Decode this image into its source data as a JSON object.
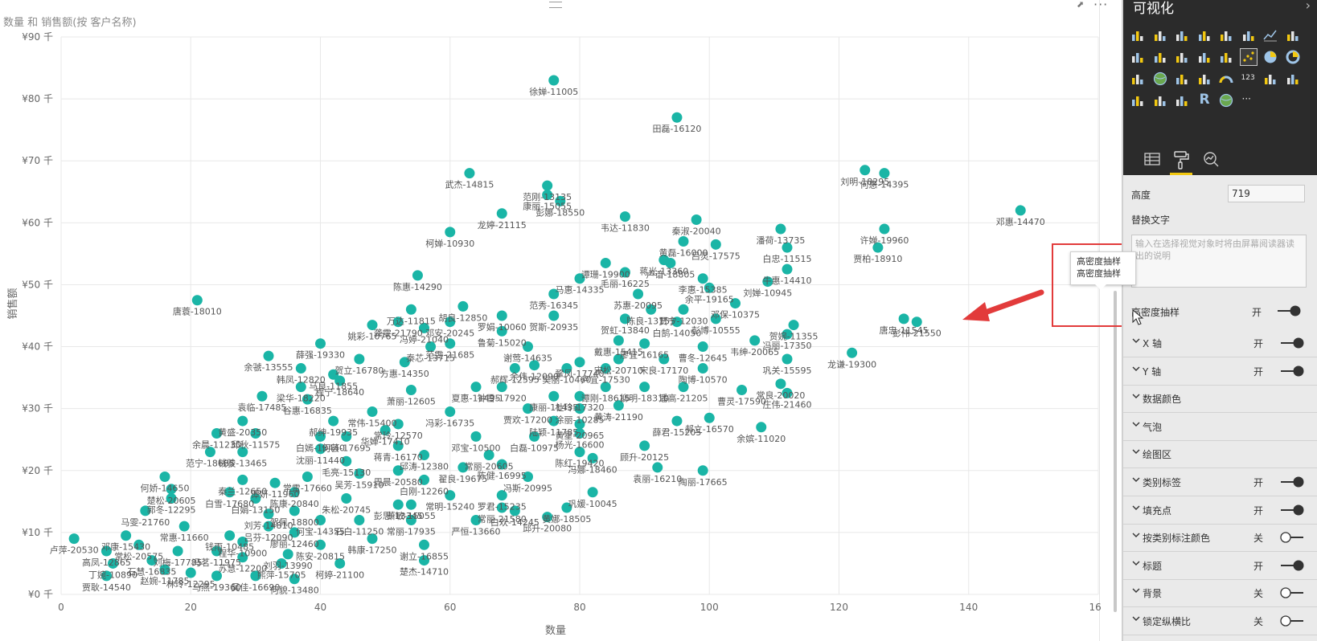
{
  "visual": {
    "title": "数量 和 销售额(按 客户名称)",
    "more_label": "···"
  },
  "chart_data": {
    "type": "scatter",
    "title": "数量 和 销售额(按 客户名称)",
    "xlabel": "数量",
    "ylabel": "销售额",
    "xlim": [
      0,
      160
    ],
    "ylim": [
      0,
      90
    ],
    "x_ticks": [
      0,
      20,
      40,
      60,
      80,
      100,
      120,
      140,
      160
    ],
    "y_ticks": [
      0,
      10,
      20,
      30,
      40,
      50,
      60,
      70,
      80,
      90
    ],
    "x_tick_labels": [
      "0",
      "20",
      "40",
      "60",
      "80",
      "100",
      "120",
      "140",
      "160"
    ],
    "y_tick_labels": [
      "¥0 千",
      "¥10 千",
      "¥20 千",
      "¥30 千",
      "¥40 千",
      "¥50 千",
      "¥60 千",
      "¥70 千",
      "¥80 千",
      "¥90 千"
    ],
    "grid": true,
    "marker_color": "#1ab5a6",
    "points": [
      {
        "x": 76,
        "y": 83,
        "label": "徐婵-11005"
      },
      {
        "x": 95,
        "y": 77,
        "label": "田磊-16120"
      },
      {
        "x": 148,
        "y": 62,
        "label": "邓惠-14470"
      },
      {
        "x": 124,
        "y": 68.5,
        "label": "刘明-18295"
      },
      {
        "x": 127,
        "y": 68,
        "label": "何惠-14395"
      },
      {
        "x": 127,
        "y": 59,
        "label": "许婵-19960"
      },
      {
        "x": 126,
        "y": 56,
        "label": "贾柏-18910"
      },
      {
        "x": 63,
        "y": 68,
        "label": "武杰-14815"
      },
      {
        "x": 75,
        "y": 66,
        "label": "范刚-13135"
      },
      {
        "x": 75,
        "y": 64.5,
        "label": "康丽-15055"
      },
      {
        "x": 77,
        "y": 63.5,
        "label": "彭娜-18550"
      },
      {
        "x": 68,
        "y": 61.5,
        "label": "龙婷-21115"
      },
      {
        "x": 87,
        "y": 61,
        "label": "韦达-11830"
      },
      {
        "x": 98,
        "y": 60.5,
        "label": "秦淑-20040"
      },
      {
        "x": 96,
        "y": 57,
        "label": "黄磊-16000"
      },
      {
        "x": 101,
        "y": 56.5,
        "label": "吕灵-17575"
      },
      {
        "x": 60,
        "y": 58.5,
        "label": "柯婵-10930"
      },
      {
        "x": 111,
        "y": 59,
        "label": "潘荷-13735"
      },
      {
        "x": 112,
        "y": 56,
        "label": "白忠-11515"
      },
      {
        "x": 93,
        "y": 54,
        "label": "蒋光-13360"
      },
      {
        "x": 94,
        "y": 53.5,
        "label": "卢谙-18805"
      },
      {
        "x": 84,
        "y": 53.5,
        "label": "谭珊-19900"
      },
      {
        "x": 112,
        "y": 52.5,
        "label": "牛惠-14410"
      },
      {
        "x": 87,
        "y": 52,
        "label": "毛丽-16225"
      },
      {
        "x": 80,
        "y": 51,
        "label": "马惠-14335"
      },
      {
        "x": 55,
        "y": 51.5,
        "label": "陈惠-14290"
      },
      {
        "x": 99,
        "y": 51,
        "label": "李惠-15385"
      },
      {
        "x": 109,
        "y": 50.5,
        "label": "刘婵-10945"
      },
      {
        "x": 100,
        "y": 49.5,
        "label": "余平-19165"
      },
      {
        "x": 21,
        "y": 47.5,
        "label": "唐蓑-18010"
      },
      {
        "x": 104,
        "y": 47,
        "label": "邓保-10375"
      },
      {
        "x": 130,
        "y": 44.5,
        "label": "唐忠-11545"
      },
      {
        "x": 132,
        "y": 44,
        "label": "彭伟-21550"
      },
      {
        "x": 122,
        "y": 39,
        "label": "龙谦-19300"
      },
      {
        "x": 113,
        "y": 43.5,
        "label": "贺婉-11355"
      },
      {
        "x": 112,
        "y": 42,
        "label": "冯丽-17350"
      },
      {
        "x": 107,
        "y": 41,
        "label": "韦绅-20065"
      },
      {
        "x": 112,
        "y": 38,
        "label": "巩关-15595"
      },
      {
        "x": 101,
        "y": 44.5,
        "label": "彭博-10555"
      },
      {
        "x": 95,
        "y": 44,
        "label": "白鹄-14050"
      },
      {
        "x": 99,
        "y": 40,
        "label": "曹冬-12645"
      },
      {
        "x": 99,
        "y": 36.5,
        "label": "陶博-10570"
      },
      {
        "x": 93,
        "y": 38,
        "label": "宋良-17170"
      },
      {
        "x": 90,
        "y": 33.5,
        "label": "柳明-18310"
      },
      {
        "x": 96,
        "y": 33.5,
        "label": "潘高-21205"
      },
      {
        "x": 105,
        "y": 33,
        "label": "曹灵-17590"
      },
      {
        "x": 111,
        "y": 34,
        "label": "常良-20020"
      },
      {
        "x": 112,
        "y": 32.5,
        "label": "庄伟-21460"
      },
      {
        "x": 100,
        "y": 28.5,
        "label": "郝立-16570"
      },
      {
        "x": 108,
        "y": 27,
        "label": "余嫔-11020"
      },
      {
        "x": 95,
        "y": 28,
        "label": "薛君-15205"
      },
      {
        "x": 90,
        "y": 24,
        "label": "顾升-20125"
      },
      {
        "x": 92,
        "y": 20.5,
        "label": "袁丽-16210"
      },
      {
        "x": 99,
        "y": 20,
        "label": "陶丽-17665"
      },
      {
        "x": 82,
        "y": 22,
        "label": "冯娜-18460"
      },
      {
        "x": 82,
        "y": 16.5,
        "label": "巩媛-10045"
      },
      {
        "x": 78,
        "y": 14,
        "label": "黄娜-18505"
      },
      {
        "x": 75,
        "y": 12.5,
        "label": "邱升-20080"
      },
      {
        "x": 70,
        "y": 13.5,
        "label": "白欢-14245"
      },
      {
        "x": 72,
        "y": 19,
        "label": "冯斯-20995"
      },
      {
        "x": 68,
        "y": 16,
        "label": "罗君-15235"
      },
      {
        "x": 68,
        "y": 14,
        "label": "常丽-21580"
      },
      {
        "x": 64,
        "y": 12,
        "label": "严恒-13660"
      },
      {
        "x": 56,
        "y": 8,
        "label": "谢立-16855"
      },
      {
        "x": 56,
        "y": 5.5,
        "label": "楚杰-14710"
      },
      {
        "x": 54,
        "y": 12,
        "label": "常丽-17935"
      },
      {
        "x": 52,
        "y": 14.5,
        "label": "彭思-13345"
      },
      {
        "x": 48,
        "y": 9,
        "label": "韩康-17250"
      },
      {
        "x": 43,
        "y": 5,
        "label": "柯婷-21100"
      },
      {
        "x": 40,
        "y": 8,
        "label": "陈安-20815"
      },
      {
        "x": 36,
        "y": 2.5,
        "label": "何貌-13480"
      },
      {
        "x": 35,
        "y": 6.5,
        "label": "刘羽-13990"
      },
      {
        "x": 2,
        "y": 9,
        "label": "卢萍-20530"
      },
      {
        "x": 7,
        "y": 7,
        "label": "高凤-12865"
      },
      {
        "x": 8,
        "y": 5,
        "label": "丁婉-10890"
      },
      {
        "x": 7,
        "y": 3,
        "label": "贾耿-14540"
      },
      {
        "x": 10,
        "y": 9.5,
        "label": "邓康-15430"
      },
      {
        "x": 13,
        "y": 13.5,
        "label": "马雯-21760"
      },
      {
        "x": 17,
        "y": 15.5,
        "label": "郭冬-12295"
      },
      {
        "x": 17,
        "y": 17,
        "label": "楚松-20605"
      },
      {
        "x": 16,
        "y": 19,
        "label": "何娇-14650"
      },
      {
        "x": 23,
        "y": 23,
        "label": "范宁-18685"
      },
      {
        "x": 24,
        "y": 26,
        "label": "余晨-11230"
      },
      {
        "x": 28,
        "y": 23,
        "label": "钱骏-13465"
      },
      {
        "x": 30,
        "y": 26,
        "label": "邱秋-11575"
      },
      {
        "x": 28,
        "y": 28,
        "label": "黄盛-20350"
      },
      {
        "x": 31,
        "y": 32,
        "label": "袁临-17485"
      },
      {
        "x": 37,
        "y": 33.5,
        "label": "梁华-18220"
      },
      {
        "x": 37,
        "y": 36.5,
        "label": "韩凤-12820"
      },
      {
        "x": 32,
        "y": 38.5,
        "label": "余虢-13555"
      },
      {
        "x": 40,
        "y": 40.5,
        "label": "薛强-19330"
      },
      {
        "x": 46,
        "y": 38,
        "label": "贺立-16780"
      },
      {
        "x": 53,
        "y": 37.5,
        "label": "方惠-14350"
      },
      {
        "x": 43,
        "y": 34.5,
        "label": "程宁-18640"
      },
      {
        "x": 42,
        "y": 35.5,
        "label": "马良-11855"
      },
      {
        "x": 38,
        "y": 31.5,
        "label": "谷惠-16835"
      },
      {
        "x": 42,
        "y": 28,
        "label": "郝绅-19935"
      },
      {
        "x": 54,
        "y": 46,
        "label": "万达-11815"
      },
      {
        "x": 52,
        "y": 44,
        "label": "龚雯-21790"
      },
      {
        "x": 56,
        "y": 43,
        "label": "冯婷-21040"
      },
      {
        "x": 48,
        "y": 43.5,
        "label": "姚彩-10765"
      },
      {
        "x": 57,
        "y": 40,
        "label": "秦芯-13715"
      },
      {
        "x": 60,
        "y": 40.5,
        "label": "范雯-21685"
      },
      {
        "x": 60,
        "y": 44,
        "label": "邓安-20245"
      },
      {
        "x": 62,
        "y": 46.5,
        "label": "胡良-12850"
      },
      {
        "x": 68,
        "y": 45,
        "label": "罗娟-10060"
      },
      {
        "x": 68,
        "y": 42.5,
        "label": "鲁菊-15020"
      },
      {
        "x": 76,
        "y": 45,
        "label": "贺斯-20935"
      },
      {
        "x": 76,
        "y": 48.5,
        "label": "范秀-16345"
      },
      {
        "x": 89,
        "y": 48.5,
        "label": "苏惠-20095"
      },
      {
        "x": 91,
        "y": 46,
        "label": "陈良-13155"
      },
      {
        "x": 96,
        "y": 46,
        "label": "贾宁-12030"
      },
      {
        "x": 87,
        "y": 44.5,
        "label": "贺虹-13840"
      },
      {
        "x": 86,
        "y": 41,
        "label": "戴惠-15415"
      },
      {
        "x": 90,
        "y": 40.5,
        "label": "廖宜-16165"
      },
      {
        "x": 72,
        "y": 40,
        "label": "谢莺-14635"
      },
      {
        "x": 80,
        "y": 37.5,
        "label": "鞏凤-17740"
      },
      {
        "x": 84,
        "y": 36.5,
        "label": "卢宜-17530"
      },
      {
        "x": 86,
        "y": 38,
        "label": "宋松-20710"
      },
      {
        "x": 73,
        "y": 37,
        "label": "余伟-12090"
      },
      {
        "x": 70,
        "y": 36.5,
        "label": "郝辉-12595"
      },
      {
        "x": 78,
        "y": 36.5,
        "label": "吴丽-10460"
      },
      {
        "x": 84,
        "y": 33.5,
        "label": "谭刚-18615"
      },
      {
        "x": 80,
        "y": 32,
        "label": "杜玲-17320"
      },
      {
        "x": 76,
        "y": 32,
        "label": "康丽-11435"
      },
      {
        "x": 64,
        "y": 33.5,
        "label": "夏惠-11495"
      },
      {
        "x": 68,
        "y": 33.5,
        "label": "钟雪-17920"
      },
      {
        "x": 54,
        "y": 33,
        "label": "萧丽-12605"
      },
      {
        "x": 86,
        "y": 30.5,
        "label": "黄涛-21190"
      },
      {
        "x": 80,
        "y": 30,
        "label": "涂丽-10285"
      },
      {
        "x": 72,
        "y": 30,
        "label": "贾欢-17200"
      },
      {
        "x": 60,
        "y": 29.5,
        "label": "冯彩-16735"
      },
      {
        "x": 48,
        "y": 29.5,
        "label": "常伟-15400"
      },
      {
        "x": 52,
        "y": 27.5,
        "label": "常玲-12570"
      },
      {
        "x": 50,
        "y": 26.5,
        "label": "华婵-17410"
      },
      {
        "x": 40,
        "y": 25.5,
        "label": "白嫣-13440"
      },
      {
        "x": 44,
        "y": 25.5,
        "label": "何荟-17695"
      },
      {
        "x": 80,
        "y": 27.5,
        "label": "黄星-20965"
      },
      {
        "x": 76,
        "y": 28,
        "label": "陆颖-11785"
      },
      {
        "x": 73,
        "y": 25.5,
        "label": "白磊-10975"
      },
      {
        "x": 80,
        "y": 26,
        "label": "杨光-16600"
      },
      {
        "x": 64,
        "y": 25.5,
        "label": "邓宝-10500"
      },
      {
        "x": 52,
        "y": 24,
        "label": "蒋青-16170"
      },
      {
        "x": 40,
        "y": 23.5,
        "label": "沈丽-11440"
      },
      {
        "x": 44,
        "y": 21.5,
        "label": "毛亮-15130"
      },
      {
        "x": 56,
        "y": 22.5,
        "label": "邱涛-12380"
      },
      {
        "x": 66,
        "y": 22.5,
        "label": "常丽-20605"
      },
      {
        "x": 68,
        "y": 21,
        "label": "陈健-16995"
      },
      {
        "x": 80,
        "y": 23,
        "label": "陈红-19420"
      },
      {
        "x": 62,
        "y": 20.5,
        "label": "翟良-19675"
      },
      {
        "x": 56,
        "y": 18.5,
        "label": "白刚-12260"
      },
      {
        "x": 60,
        "y": 16,
        "label": "常明-15240"
      },
      {
        "x": 52,
        "y": 20,
        "label": "周晨-20580"
      },
      {
        "x": 46,
        "y": 19.5,
        "label": "吴芳-15910"
      },
      {
        "x": 38,
        "y": 19,
        "label": "常雷-17660"
      },
      {
        "x": 33,
        "y": 18,
        "label": "谭妍-11960"
      },
      {
        "x": 28,
        "y": 18.5,
        "label": "秦兰-12650"
      },
      {
        "x": 26,
        "y": 16.5,
        "label": "白雪-17680"
      },
      {
        "x": 36,
        "y": 16.5,
        "label": "陈康-20840"
      },
      {
        "x": 30,
        "y": 15.5,
        "label": "白娟-13150"
      },
      {
        "x": 44,
        "y": 15.5,
        "label": "朱松-20745"
      },
      {
        "x": 36,
        "y": 13.5,
        "label": "贺佩-18800"
      },
      {
        "x": 32,
        "y": 13,
        "label": "刘芳-14810"
      },
      {
        "x": 40,
        "y": 12,
        "label": "何宝-14355"
      },
      {
        "x": 46,
        "y": 12,
        "label": "石白-11250"
      },
      {
        "x": 54,
        "y": 14.5,
        "label": "萧敏-15055"
      },
      {
        "x": 32,
        "y": 11,
        "label": "吕芬-12090"
      },
      {
        "x": 36,
        "y": 10,
        "label": "廖丽-12460"
      },
      {
        "x": 19,
        "y": 11,
        "label": "常惠-11660"
      },
      {
        "x": 26,
        "y": 9.5,
        "label": "钱雨-10485"
      },
      {
        "x": 28,
        "y": 8.5,
        "label": "程华-10900"
      },
      {
        "x": 12,
        "y": 8,
        "label": "常松-20575"
      },
      {
        "x": 18,
        "y": 7,
        "label": "刘梅-17785"
      },
      {
        "x": 24,
        "y": 7,
        "label": "冯茗-11975"
      },
      {
        "x": 28,
        "y": 6,
        "label": "苏慧-12200"
      },
      {
        "x": 34,
        "y": 5,
        "label": "熊萍-15705"
      },
      {
        "x": 14,
        "y": 5.5,
        "label": "石慧-16835"
      },
      {
        "x": 16,
        "y": 4,
        "label": "赵婉-11785"
      },
      {
        "x": 20,
        "y": 3.5,
        "label": "林玲-12295"
      },
      {
        "x": 24,
        "y": 3,
        "label": "马燕-19360"
      },
      {
        "x": 30,
        "y": 3,
        "label": "吴佳-16690"
      }
    ]
  },
  "tooltip": {
    "line1": "高密度抽样",
    "line2": "高密度抽样"
  },
  "pane": {
    "title": "可视化",
    "collapse_icon": "›",
    "height_label": "高度",
    "height_value": "719",
    "alt_text_label": "替换文字",
    "alt_text_placeholder": "输入在选择视觉对象时将由屏幕阅读器读出的说明",
    "hd_label": "高密度抽样",
    "hd_state": "开",
    "sections": [
      {
        "label": "X 轴",
        "state": "开",
        "on": true
      },
      {
        "label": "Y 轴",
        "state": "开",
        "on": true
      },
      {
        "label": "数据颜色",
        "state": "",
        "on": null
      },
      {
        "label": "气泡",
        "state": "",
        "on": null
      },
      {
        "label": "绘图区",
        "state": "",
        "on": null
      },
      {
        "label": "类别标签",
        "state": "开",
        "on": true
      },
      {
        "label": "填充点",
        "state": "开",
        "on": true
      },
      {
        "label": "按类别标注颜色",
        "state": "关",
        "on": false
      },
      {
        "label": "标题",
        "state": "开",
        "on": true
      },
      {
        "label": "背景",
        "state": "关",
        "on": false
      },
      {
        "label": "锁定纵横比",
        "state": "关",
        "on": false
      }
    ],
    "visual_icons": [
      "stacked-bar-icon",
      "stacked-column-icon",
      "clustered-bar-icon",
      "clustered-column-icon",
      "100-bar-icon",
      "100-column-icon",
      "line-icon",
      "area-icon",
      "stacked-area-icon",
      "line-column-icon",
      "line-clustered-column-icon",
      "ribbon-icon",
      "waterfall-icon",
      "scatter-icon",
      "pie-icon",
      "donut-icon",
      "treemap-icon",
      "map-icon",
      "filled-map-icon",
      "funnel-icon",
      "gauge-icon",
      "card-icon",
      "multirow-card-icon",
      "kpi-icon",
      "slicer-icon",
      "table-icon",
      "matrix-icon",
      "r-visual-icon",
      "globe-icon",
      "more-visuals-icon"
    ],
    "tabs": [
      "fields-tab-icon",
      "format-tab-icon",
      "analytics-tab-icon"
    ],
    "r_label": "R",
    "card_label": "123",
    "more_visuals_label": "···"
  }
}
